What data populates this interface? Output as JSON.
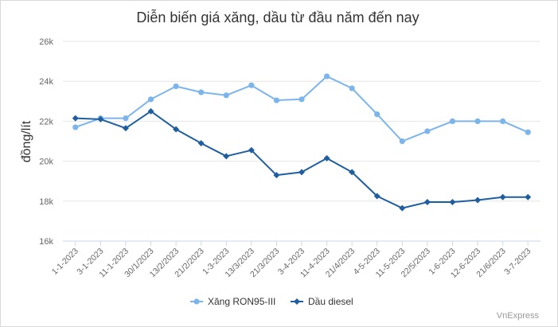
{
  "chart_data": {
    "type": "line",
    "title": "Diễn biến giá xăng, dầu từ đầu năm đến nay",
    "ylabel": "đồng/lít",
    "xlabel": "",
    "ylim": [
      16000,
      26000
    ],
    "yticks": [
      16000,
      18000,
      20000,
      22000,
      24000,
      26000
    ],
    "ytick_labels": [
      "16k",
      "18k",
      "20k",
      "22k",
      "24k",
      "26k"
    ],
    "categories": [
      "1-1-2023",
      "3-1-2023",
      "11-1-2023",
      "30/1/2023",
      "13/2/2023",
      "21/2/2023",
      "1-3-2023",
      "13/3/2023",
      "21/3/2023",
      "3-4-2023",
      "11-4-2023",
      "21/4/2023",
      "4-5-2023",
      "11-5-2023",
      "22/5/2023",
      "1-6-2023",
      "12-6-2023",
      "21/6/2023",
      "3-7-2023"
    ],
    "series": [
      {
        "name": "Xăng RON95-III",
        "color": "#7cb5ec",
        "values": [
          21700,
          22150,
          22150,
          23100,
          23750,
          23450,
          23300,
          23800,
          23050,
          23100,
          24250,
          23650,
          22350,
          21000,
          21500,
          22000,
          22000,
          22000,
          21450
        ]
      },
      {
        "name": "Dầu diesel",
        "color": "#1f5fa0",
        "values": [
          22150,
          22100,
          21650,
          22500,
          21600,
          20900,
          20250,
          20550,
          19300,
          19450,
          20150,
          19450,
          18250,
          17650,
          17950,
          17950,
          18050,
          18200,
          18200
        ]
      }
    ],
    "grid": true,
    "legend_position": "bottom-center"
  },
  "credit": "VnExpress"
}
